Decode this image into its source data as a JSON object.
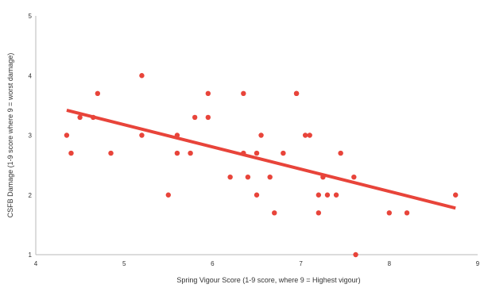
{
  "chart_data": {
    "type": "scatter",
    "title": "",
    "xlabel": "Spring Vigour Score (1-9 score, where 9 = Highest vigour)",
    "ylabel": "CSFB Damage (1-9 score where 9 = worst damage)",
    "xlim": [
      4,
      9
    ],
    "ylim": [
      1,
      5
    ],
    "xticks": [
      "4",
      "5",
      "6",
      "7",
      "8",
      "9"
    ],
    "yticks": [
      "1",
      "2",
      "3",
      "4",
      "5"
    ],
    "grid": false,
    "legend": "none",
    "point_color": "#e8443a",
    "trend_color": "#e8443a",
    "points": [
      [
        4.35,
        3.0
      ],
      [
        4.4,
        2.7
      ],
      [
        4.5,
        3.3
      ],
      [
        4.65,
        3.3
      ],
      [
        4.7,
        3.7
      ],
      [
        4.85,
        2.7
      ],
      [
        5.2,
        4.0
      ],
      [
        5.2,
        3.0
      ],
      [
        5.5,
        2.0
      ],
      [
        5.6,
        3.0
      ],
      [
        5.6,
        2.7
      ],
      [
        5.75,
        2.7
      ],
      [
        5.8,
        3.3
      ],
      [
        5.95,
        3.7
      ],
      [
        5.95,
        3.3
      ],
      [
        6.2,
        2.3
      ],
      [
        6.35,
        3.7
      ],
      [
        6.35,
        2.7
      ],
      [
        6.4,
        2.3
      ],
      [
        6.5,
        2.7
      ],
      [
        6.5,
        2.0
      ],
      [
        6.55,
        3.0
      ],
      [
        6.65,
        2.3
      ],
      [
        6.7,
        1.7
      ],
      [
        6.8,
        2.7
      ],
      [
        6.95,
        3.7
      ],
      [
        6.95,
        3.7
      ],
      [
        7.05,
        3.0
      ],
      [
        7.1,
        3.0
      ],
      [
        7.2,
        1.7
      ],
      [
        7.2,
        2.0
      ],
      [
        7.25,
        2.3
      ],
      [
        7.3,
        2.0
      ],
      [
        7.4,
        2.0
      ],
      [
        7.45,
        2.7
      ],
      [
        7.6,
        2.3
      ],
      [
        7.62,
        1.0
      ],
      [
        8.0,
        1.7
      ],
      [
        8.2,
        1.7
      ],
      [
        8.75,
        2.0
      ]
    ],
    "trendline": {
      "x": [
        4.35,
        8.75
      ],
      "y": [
        3.42,
        1.78
      ]
    }
  }
}
